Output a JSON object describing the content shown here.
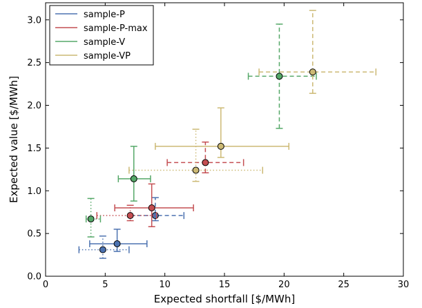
{
  "chart_data": {
    "type": "scatter",
    "xlabel": "Expected shortfall [$/MWh]",
    "ylabel": "Expected value [$/MWh]",
    "xlim": [
      0,
      30
    ],
    "ylim": [
      0.0,
      3.2
    ],
    "x_ticks": [
      0,
      5,
      10,
      15,
      20,
      25,
      30
    ],
    "y_ticks": [
      0.0,
      0.5,
      1.0,
      1.5,
      2.0,
      2.5,
      3.0
    ],
    "x_tick_labels": [
      "0",
      "5",
      "10",
      "15",
      "20",
      "25",
      "30"
    ],
    "y_tick_labels": [
      "0.0",
      "0.5",
      "1.0",
      "1.5",
      "2.0",
      "2.5",
      "3.0"
    ],
    "grid": false,
    "legend_position": "top-left",
    "series": [
      {
        "name": "sample-P",
        "color": "#4c72b0",
        "points": [
          {
            "x": 6.0,
            "y": 0.38,
            "xerr": [
              3.7,
              8.5
            ],
            "yerr": [
              0.29,
              0.55
            ],
            "style": "solid"
          },
          {
            "x": 4.8,
            "y": 0.31,
            "xerr": [
              2.8,
              7.0
            ],
            "yerr": [
              0.21,
              0.47
            ],
            "style": "dotted"
          },
          {
            "x": 9.2,
            "y": 0.71,
            "xerr": [
              7.1,
              11.6
            ],
            "yerr": [
              0.65,
              0.92
            ],
            "style": "dashed"
          }
        ]
      },
      {
        "name": "sample-P-max",
        "color": "#c44e52",
        "points": [
          {
            "x": 8.9,
            "y": 0.8,
            "xerr": [
              5.8,
              12.4
            ],
            "yerr": [
              0.58,
              1.08
            ],
            "style": "solid"
          },
          {
            "x": 7.1,
            "y": 0.71,
            "xerr": [
              4.3,
              9.3
            ],
            "yerr": [
              0.65,
              0.83
            ],
            "style": "dotted"
          },
          {
            "x": 13.4,
            "y": 1.33,
            "xerr": [
              10.2,
              16.6
            ],
            "yerr": [
              1.21,
              1.57
            ],
            "style": "dashed"
          }
        ]
      },
      {
        "name": "sample-V",
        "color": "#55a868",
        "points": [
          {
            "x": 7.4,
            "y": 1.14,
            "xerr": [
              6.1,
              8.8
            ],
            "yerr": [
              0.88,
              1.52
            ],
            "style": "solid"
          },
          {
            "x": 3.8,
            "y": 0.67,
            "xerr": [
              3.4,
              4.6
            ],
            "yerr": [
              0.46,
              0.91
            ],
            "style": "dotted"
          },
          {
            "x": 19.6,
            "y": 2.34,
            "xerr": [
              17.0,
              22.7
            ],
            "yerr": [
              1.73,
              2.95
            ],
            "style": "dashed"
          }
        ]
      },
      {
        "name": "sample-VP",
        "color": "#ccb974",
        "points": [
          {
            "x": 14.7,
            "y": 1.52,
            "xerr": [
              9.2,
              20.4
            ],
            "yerr": [
              1.39,
              1.97
            ],
            "style": "solid"
          },
          {
            "x": 12.6,
            "y": 1.24,
            "xerr": [
              7.0,
              18.2
            ],
            "yerr": [
              1.11,
              1.72
            ],
            "style": "dotted"
          },
          {
            "x": 22.4,
            "y": 2.39,
            "xerr": [
              17.9,
              27.7
            ],
            "yerr": [
              2.14,
              3.11
            ],
            "style": "dashed"
          }
        ]
      }
    ]
  }
}
